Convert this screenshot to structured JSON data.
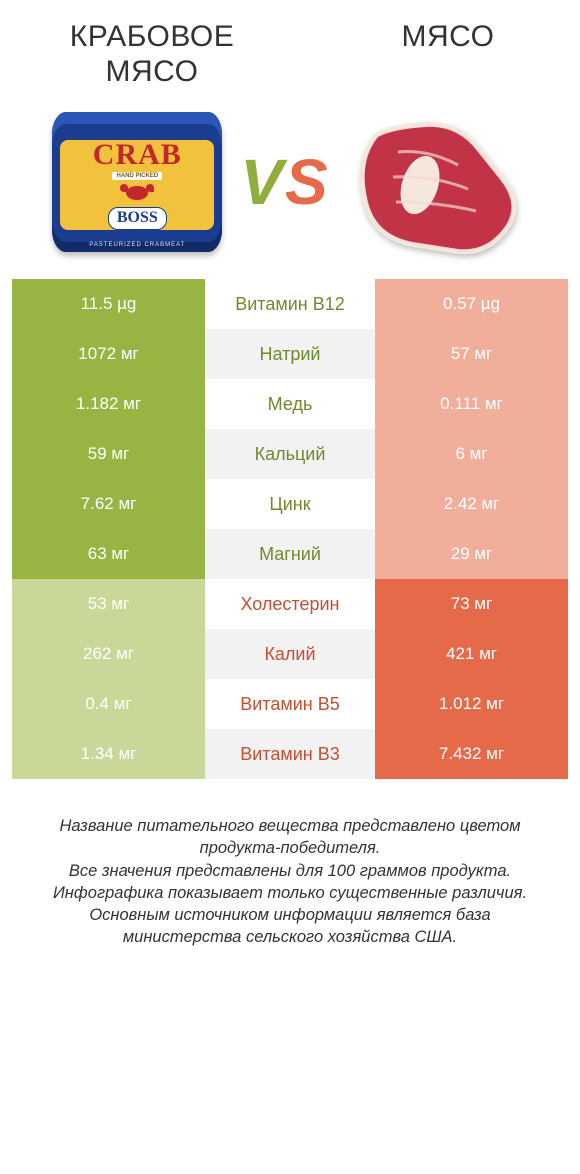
{
  "titles": {
    "left": "Крабовое мясо",
    "right": "Мясо"
  },
  "vs": {
    "v": "V",
    "s": "S"
  },
  "can": {
    "big": "CRAB",
    "hand": "HAND PICKED",
    "boss": "BOSS",
    "foot": "PASTEURIZED CRABMEAT"
  },
  "colors": {
    "left_win": "#98b544",
    "left_lose": "#c9d898",
    "right_win": "#e46a4a",
    "right_lose": "#f0ae9b",
    "mid_even": "#ffffff",
    "mid_odd": "#f2f2f2",
    "label_green": "#6f8a2e",
    "label_orange": "#c44f33"
  },
  "rows": [
    {
      "label": "Витамин B12",
      "left": "11.5 µg",
      "right": "0.57 µg",
      "winner": "left"
    },
    {
      "label": "Натрий",
      "left": "1072 мг",
      "right": "57 мг",
      "winner": "left"
    },
    {
      "label": "Медь",
      "left": "1.182 мг",
      "right": "0.111 мг",
      "winner": "left"
    },
    {
      "label": "Кальций",
      "left": "59 мг",
      "right": "6 мг",
      "winner": "left"
    },
    {
      "label": "Цинк",
      "left": "7.62 мг",
      "right": "2.42 мг",
      "winner": "left"
    },
    {
      "label": "Магний",
      "left": "63 мг",
      "right": "29 мг",
      "winner": "left"
    },
    {
      "label": "Холестерин",
      "left": "53 мг",
      "right": "73 мг",
      "winner": "right"
    },
    {
      "label": "Калий",
      "left": "262 мг",
      "right": "421 мг",
      "winner": "right"
    },
    {
      "label": "Витамин B5",
      "left": "0.4 мг",
      "right": "1.012 мг",
      "winner": "right"
    },
    {
      "label": "Витамин B3",
      "left": "1.34 мг",
      "right": "7.432 мг",
      "winner": "right"
    }
  ],
  "footer": "Название питательного вещества представлено цветом продукта-победителя.\nВсе значения представлены для 100 граммов продукта.\nИнфографика показывает только существенные различия.\nОсновным источником информации является база министерства сельского хозяйства США."
}
